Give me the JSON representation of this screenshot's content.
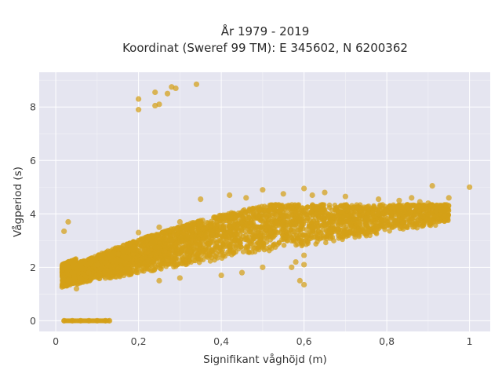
{
  "chart_data": {
    "type": "scatter",
    "title_line1": "År 1979 - 2019",
    "title_line2": "Koordinat (Sweref 99 TM): E 345602, N 6200362",
    "xlabel": "Signifikant våghöjd (m)",
    "ylabel": "Vågperiod (s)",
    "xlim": [
      -0.04,
      1.05
    ],
    "ylim": [
      -0.4,
      9.3
    ],
    "x_ticks": [
      {
        "value": 0,
        "label": "0"
      },
      {
        "value": 0.2,
        "label": "0,2"
      },
      {
        "value": 0.4,
        "label": "0,4"
      },
      {
        "value": 0.6,
        "label": "0,6"
      },
      {
        "value": 0.8,
        "label": "0,8"
      },
      {
        "value": 1.0,
        "label": "1"
      }
    ],
    "y_ticks": [
      {
        "value": 0,
        "label": "0"
      },
      {
        "value": 2,
        "label": "2"
      },
      {
        "value": 4,
        "label": "4"
      },
      {
        "value": 6,
        "label": "6"
      },
      {
        "value": 8,
        "label": "8"
      }
    ],
    "grid": true,
    "legend": false,
    "marker_color": "#D4A017",
    "background_color": "#E5E5F0",
    "series": [
      {
        "values": [
          [
            0.02,
            1.6
          ],
          [
            0.03,
            1.5
          ],
          [
            0.02,
            3.35
          ],
          [
            0.03,
            3.7
          ],
          [
            0.05,
            1.2
          ],
          [
            0.08,
            1.8
          ],
          [
            0.1,
            2.1
          ],
          [
            0.12,
            1.6
          ],
          [
            0.15,
            2.5
          ],
          [
            0.18,
            2.9
          ],
          [
            0.2,
            3.3
          ],
          [
            0.22,
            2.2
          ],
          [
            0.25,
            3.5
          ],
          [
            0.28,
            3.0
          ],
          [
            0.3,
            3.7
          ],
          [
            0.32,
            2.6
          ],
          [
            0.35,
            3.6
          ],
          [
            0.38,
            3.2
          ],
          [
            0.4,
            3.9
          ],
          [
            0.42,
            2.8
          ],
          [
            0.45,
            3.7
          ],
          [
            0.48,
            3.4
          ],
          [
            0.5,
            4.0
          ],
          [
            0.52,
            3.3
          ],
          [
            0.55,
            3.9
          ],
          [
            0.58,
            3.6
          ],
          [
            0.6,
            4.1
          ],
          [
            0.62,
            3.5
          ],
          [
            0.65,
            3.9
          ],
          [
            0.68,
            3.7
          ],
          [
            0.7,
            4.2
          ],
          [
            0.72,
            3.8
          ],
          [
            0.75,
            3.8
          ],
          [
            0.78,
            4.0
          ],
          [
            0.8,
            4.1
          ],
          [
            0.82,
            3.7
          ],
          [
            0.85,
            4.2
          ],
          [
            0.88,
            3.9
          ],
          [
            0.9,
            4.4
          ],
          [
            0.92,
            4.1
          ],
          [
            0.95,
            4.6
          ],
          [
            1.0,
            5.0
          ],
          [
            0.91,
            5.05
          ],
          [
            0.86,
            4.6
          ],
          [
            0.88,
            4.45
          ],
          [
            0.83,
            4.5
          ],
          [
            0.78,
            4.55
          ],
          [
            0.7,
            4.65
          ],
          [
            0.65,
            4.8
          ],
          [
            0.6,
            4.95
          ],
          [
            0.62,
            4.7
          ],
          [
            0.55,
            4.75
          ],
          [
            0.5,
            4.9
          ],
          [
            0.46,
            4.6
          ],
          [
            0.42,
            4.7
          ],
          [
            0.35,
            4.55
          ],
          [
            0.59,
            1.5
          ],
          [
            0.6,
            1.35
          ],
          [
            0.6,
            2.1
          ],
          [
            0.58,
            2.2
          ],
          [
            0.6,
            2.45
          ],
          [
            0.57,
            2.0
          ],
          [
            0.5,
            2.0
          ],
          [
            0.45,
            1.8
          ],
          [
            0.4,
            1.7
          ],
          [
            0.35,
            2.3
          ],
          [
            0.3,
            1.6
          ],
          [
            0.25,
            1.5
          ],
          [
            0.2,
            8.3
          ],
          [
            0.2,
            7.9
          ],
          [
            0.24,
            8.55
          ],
          [
            0.25,
            8.1
          ],
          [
            0.27,
            8.5
          ],
          [
            0.28,
            8.75
          ],
          [
            0.29,
            8.7
          ],
          [
            0.34,
            8.85
          ],
          [
            0.24,
            8.05
          ],
          [
            0.02,
            0
          ],
          [
            0.04,
            0
          ],
          [
            0.06,
            0
          ],
          [
            0.08,
            0
          ],
          [
            0.1,
            0
          ],
          [
            0.12,
            0
          ],
          [
            0.13,
            0
          ]
        ]
      }
    ]
  }
}
